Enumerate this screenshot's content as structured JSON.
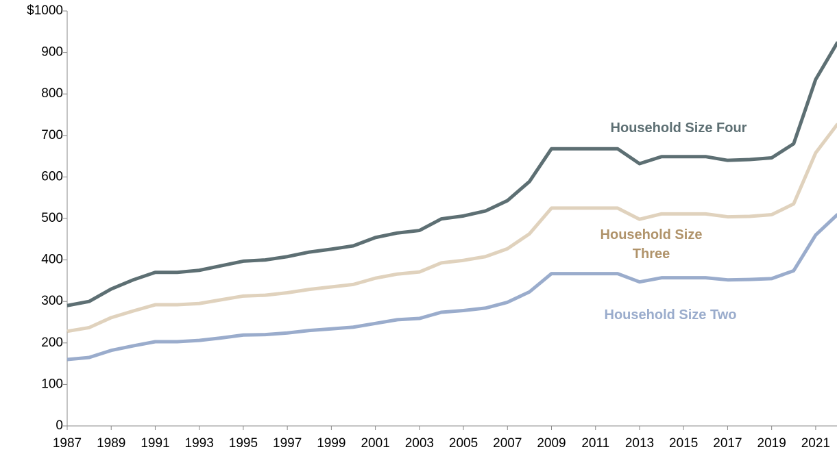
{
  "chart_data": {
    "type": "line",
    "x": [
      1987,
      1988,
      1989,
      1990,
      1991,
      1992,
      1993,
      1994,
      1995,
      1996,
      1997,
      1998,
      1999,
      2000,
      2001,
      2002,
      2003,
      2004,
      2005,
      2006,
      2007,
      2008,
      2009,
      2010,
      2011,
      2012,
      2013,
      2014,
      2015,
      2016,
      2017,
      2018,
      2019,
      2020,
      2021,
      2022
    ],
    "series": [
      {
        "name": "Household Size Four",
        "color": "#5d6f73",
        "label_color": "#5d6f73",
        "values": [
          290,
          300,
          330,
          352,
          370,
          370,
          375,
          386,
          397,
          400,
          408,
          419,
          426,
          434,
          454,
          465,
          471,
          499,
          506,
          518,
          543,
          589,
          668,
          668,
          668,
          668,
          632,
          649,
          649,
          649,
          640,
          642,
          646,
          680,
          835,
          925
        ]
      },
      {
        "name": "Household Size Three",
        "color": "#e0d2bd",
        "label_color": "#b0936a",
        "values": [
          228,
          237,
          261,
          277,
          292,
          292,
          295,
          304,
          313,
          315,
          321,
          329,
          335,
          341,
          356,
          366,
          371,
          393,
          399,
          408,
          427,
          463,
          525,
          525,
          525,
          525,
          498,
          511,
          511,
          511,
          504,
          505,
          509,
          535,
          658,
          728
        ]
      },
      {
        "name": "Household Size Two",
        "color": "#9aaccc",
        "label_color": "#9aaccc",
        "values": [
          160,
          165,
          182,
          193,
          203,
          203,
          206,
          212,
          219,
          220,
          224,
          230,
          234,
          238,
          247,
          256,
          259,
          274,
          278,
          284,
          298,
          323,
          367,
          367,
          367,
          367,
          347,
          357,
          357,
          357,
          352,
          353,
          355,
          374,
          460,
          510
        ]
      }
    ],
    "xlim": [
      1987,
      2022
    ],
    "xticks": [
      1987,
      1989,
      1991,
      1993,
      1995,
      1997,
      1999,
      2001,
      2003,
      2005,
      2007,
      2009,
      2011,
      2013,
      2015,
      2017,
      2019,
      2021
    ],
    "ylim": [
      0,
      1000
    ],
    "yticks": [
      0,
      100,
      200,
      300,
      400,
      500,
      600,
      700,
      800,
      900,
      {
        "value": 1000,
        "label": "$1000"
      }
    ]
  }
}
